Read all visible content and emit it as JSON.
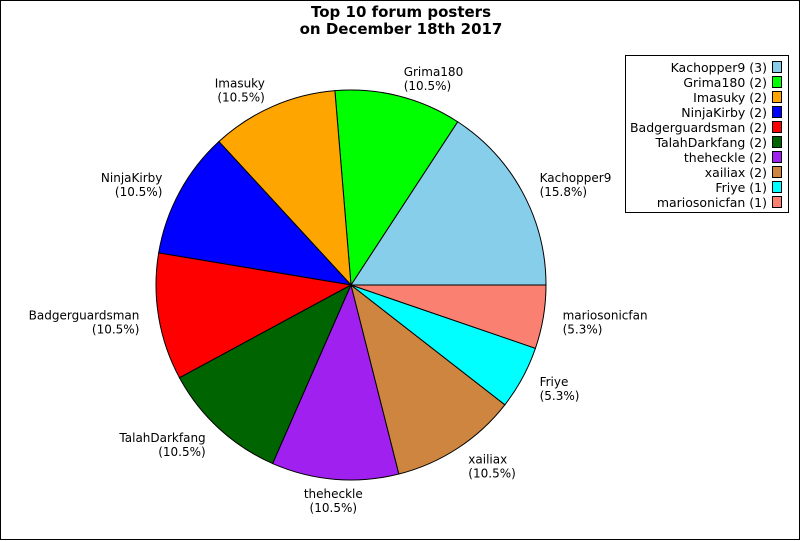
{
  "chart_data": {
    "type": "pie",
    "title": [
      "Top 10 forum posters",
      "on December 18th 2017"
    ],
    "slices": [
      {
        "name": "Kachopper9",
        "value": 3,
        "percent": "15.8%",
        "legend": "Kachopper9 (3)",
        "color": "#87ceeb"
      },
      {
        "name": "Grima180",
        "value": 2,
        "percent": "10.5%",
        "legend": "Grima180 (2)",
        "color": "#00ff00"
      },
      {
        "name": "Imasuky",
        "value": 2,
        "percent": "10.5%",
        "legend": "Imasuky (2)",
        "color": "#ffa500"
      },
      {
        "name": "NinjaKirby",
        "value": 2,
        "percent": "10.5%",
        "legend": "NinjaKirby (2)",
        "color": "#0000ff"
      },
      {
        "name": "Badgerguardsman",
        "value": 2,
        "percent": "10.5%",
        "legend": "Badgerguardsman (2)",
        "color": "#ff0000"
      },
      {
        "name": "TalahDarkfang",
        "value": 2,
        "percent": "10.5%",
        "legend": "TalahDarkfang (2)",
        "color": "#006400"
      },
      {
        "name": "theheckle",
        "value": 2,
        "percent": "10.5%",
        "legend": "theheckle (2)",
        "color": "#a020f0"
      },
      {
        "name": "xailiax",
        "value": 2,
        "percent": "10.5%",
        "legend": "xailiax (2)",
        "color": "#cd853f"
      },
      {
        "name": "Friye",
        "value": 1,
        "percent": "5.3%",
        "legend": "Friye (1)",
        "color": "#00ffff"
      },
      {
        "name": "mariosonicfan",
        "value": 1,
        "percent": "5.3%",
        "legend": "mariosonicfan (1)",
        "color": "#fa8072"
      }
    ],
    "start_angle": "east",
    "direction": "counterclockwise",
    "legend_position": "top-right"
  }
}
